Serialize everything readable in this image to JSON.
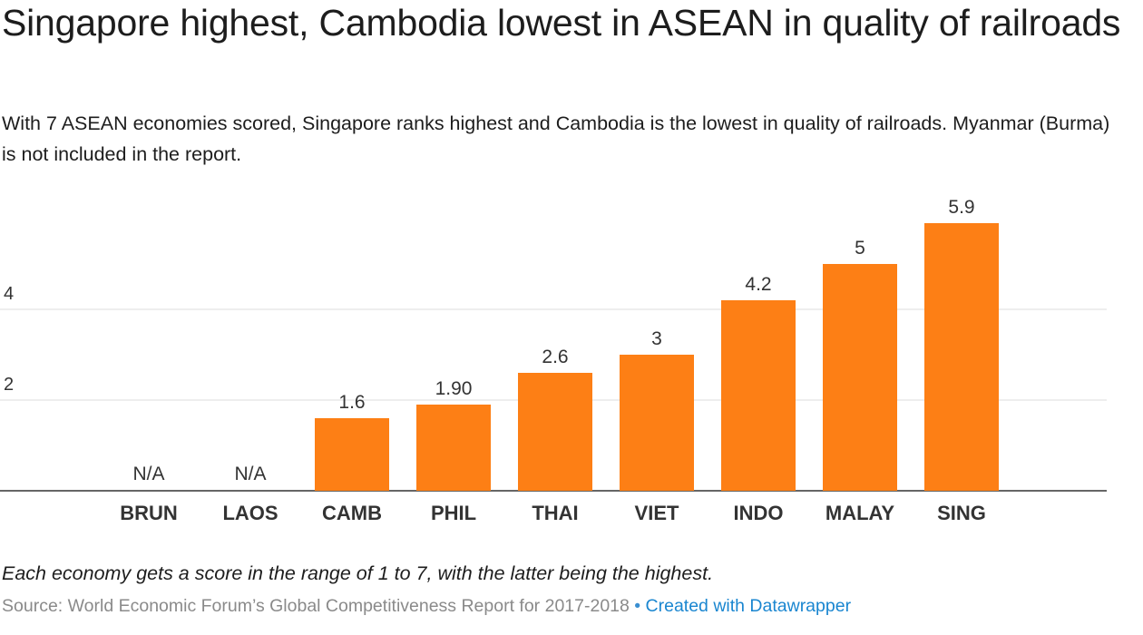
{
  "title": "Singapore highest, Cambodia lowest in ASEAN in quality of railroads",
  "subtitle": "With 7 ASEAN economies scored, Singapore ranks highest and Cambodia is the lowest in quality of railroads. Myanmar (Burma) is not included in the report.",
  "footnote": "Each economy gets a score in the range of 1 to 7, with the latter being the highest.",
  "source": {
    "text": "Source: World Economic Forum’s Global Competitiveness Report for 2017-2018",
    "separator": "•",
    "credit": "Created with Datawrapper"
  },
  "colors": {
    "bar": "#fd7f15",
    "grid": "#dddddd",
    "baseline": "#333333"
  },
  "chart_data": {
    "type": "bar",
    "categories": [
      "BRUN",
      "LAOS",
      "CAMB",
      "PHIL",
      "THAI",
      "VIET",
      "INDO",
      "MALAY",
      "SING"
    ],
    "values": [
      null,
      null,
      1.6,
      1.9,
      2.6,
      3,
      4.2,
      5,
      5.9
    ],
    "value_labels": [
      "N/A",
      "N/A",
      "1.6",
      "1.90",
      "2.6",
      "3",
      "4.2",
      "5",
      "5.9"
    ],
    "yticks": [
      2,
      4
    ],
    "ylim": [
      0,
      7
    ],
    "grid": true,
    "xlabel": "",
    "ylabel": ""
  }
}
